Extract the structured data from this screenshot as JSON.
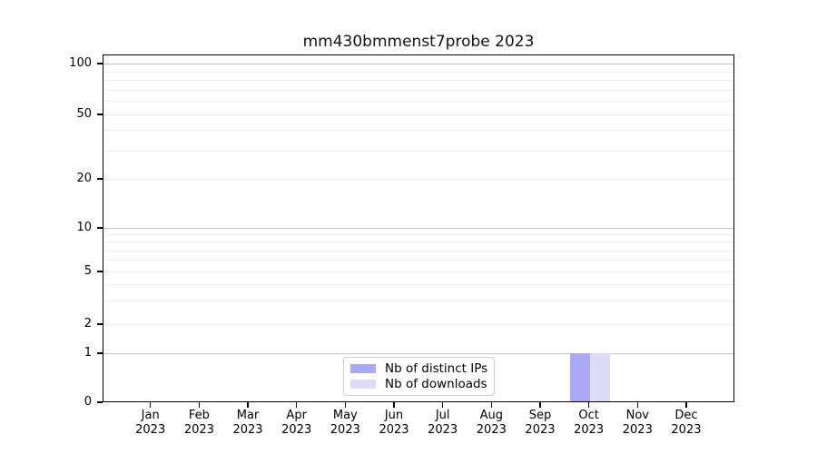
{
  "title": "mm430bmmenst7probe 2023",
  "legend": {
    "items": [
      {
        "label": "Nb of distinct IPs",
        "color": "#a9a9f7"
      },
      {
        "label": "Nb of downloads",
        "color": "#dcdcf9"
      }
    ]
  },
  "axes": {
    "y_tick_labels": [
      "100",
      "50",
      "20",
      "10",
      "5",
      "2",
      "1",
      "0"
    ],
    "x_tick_labels": [
      {
        "month": "Jan",
        "year": "2023"
      },
      {
        "month": "Feb",
        "year": "2023"
      },
      {
        "month": "Mar",
        "year": "2023"
      },
      {
        "month": "Apr",
        "year": "2023"
      },
      {
        "month": "May",
        "year": "2023"
      },
      {
        "month": "Jun",
        "year": "2023"
      },
      {
        "month": "Jul",
        "year": "2023"
      },
      {
        "month": "Aug",
        "year": "2023"
      },
      {
        "month": "Sep",
        "year": "2023"
      },
      {
        "month": "Oct",
        "year": "2023"
      },
      {
        "month": "Nov",
        "year": "2023"
      },
      {
        "month": "Dec",
        "year": "2023"
      }
    ]
  },
  "chart_data": {
    "type": "bar",
    "title": "mm430bmmenst7probe 2023",
    "categories": [
      "Jan 2023",
      "Feb 2023",
      "Mar 2023",
      "Apr 2023",
      "May 2023",
      "Jun 2023",
      "Jul 2023",
      "Aug 2023",
      "Sep 2023",
      "Oct 2023",
      "Nov 2023",
      "Dec 2023"
    ],
    "series": [
      {
        "name": "Nb of distinct IPs",
        "color": "#a9a9f7",
        "values": [
          0,
          0,
          0,
          0,
          0,
          0,
          0,
          0,
          0,
          1,
          0,
          0
        ]
      },
      {
        "name": "Nb of downloads",
        "color": "#dcdcf9",
        "values": [
          0,
          0,
          0,
          0,
          0,
          0,
          0,
          0,
          0,
          1,
          0,
          0
        ]
      }
    ],
    "xlabel": "",
    "ylabel": "",
    "yscale": "symlog",
    "ylim": [
      0,
      113
    ],
    "y_major_ticks": [
      0,
      1,
      2,
      5,
      10,
      20,
      50,
      100
    ],
    "y_major_gridlines": [
      1,
      10,
      100
    ],
    "y_minor_gridlines": [
      2,
      3,
      4,
      5,
      6,
      7,
      8,
      9,
      20,
      30,
      40,
      50,
      60,
      70,
      80,
      90
    ],
    "grid": true,
    "legend_position": "lower center"
  }
}
